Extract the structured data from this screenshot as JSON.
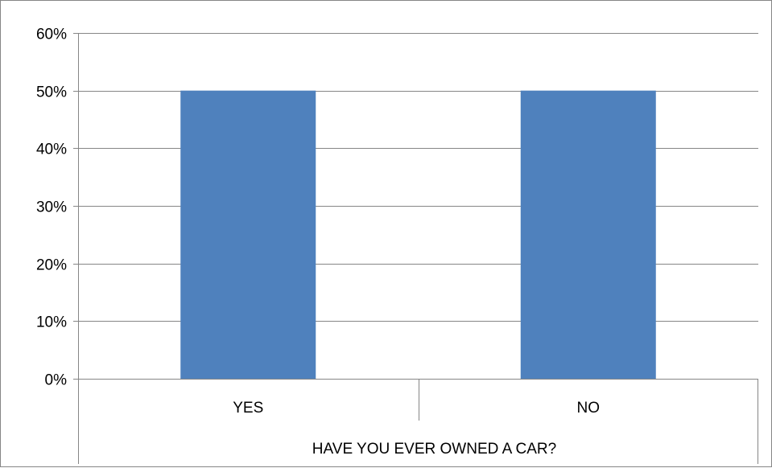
{
  "chart_data": {
    "type": "bar",
    "categories": [
      "YES",
      "NO"
    ],
    "series": [
      {
        "values": [
          0.5,
          0.5
        ]
      }
    ],
    "ylim": [
      0,
      0.6
    ],
    "yticks": [
      0,
      0.1,
      0.2,
      0.3,
      0.4,
      0.5,
      0.6
    ],
    "ytick_labels": [
      "0%",
      "10%",
      "20%",
      "30%",
      "40%",
      "50%",
      "60%"
    ],
    "xlabel": "HAVE YOU EVER OWNED A CAR?",
    "ylabel": "",
    "title": "",
    "grid": true,
    "legend": "none",
    "bar_color": "#4F81BD",
    "gridline_color": "#868686"
  }
}
